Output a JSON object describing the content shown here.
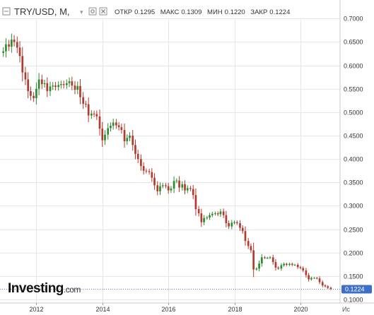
{
  "header": {
    "symbol": "TRY/USD",
    "interval": "M",
    "ohlc": [
      {
        "label": "ОТКР",
        "value": "0.1295"
      },
      {
        "label": "МАКС",
        "value": "0.1309"
      },
      {
        "label": "МИН",
        "value": "0.1220"
      },
      {
        "label": "ЗАКР",
        "value": "0.1224"
      }
    ]
  },
  "logo": {
    "brand": "Investing",
    "suffix": ".com"
  },
  "axis_corner_label": "Ис",
  "colors": {
    "up": "#2e8b2e",
    "down": "#b23a2e",
    "grid": "#e6e6e6",
    "price_line": "#5a7fc0",
    "price_tag": "#3d6fc7"
  },
  "chart_data": {
    "type": "candlestick",
    "y_ticks": [
      "0.1000",
      "0.1500",
      "0.2000",
      "0.2500",
      "0.3000",
      "0.3500",
      "0.4000",
      "0.4500",
      "0.5000",
      "0.5500",
      "0.6000",
      "0.6500",
      "0.7000"
    ],
    "ylim": [
      0.1,
      0.705
    ],
    "x_ticks": [
      "2012",
      "2014",
      "2016",
      "2018",
      "2020"
    ],
    "xlim": [
      2010.9,
      2021.2
    ],
    "last_price": 0.1224,
    "last_price_label": "0.1224",
    "points": [
      [
        2011.0,
        0.63
      ],
      [
        2011.08,
        0.645
      ],
      [
        2011.17,
        0.64
      ],
      [
        2011.25,
        0.655
      ],
      [
        2011.33,
        0.65
      ],
      [
        2011.42,
        0.638
      ],
      [
        2011.5,
        0.62
      ],
      [
        2011.58,
        0.585
      ],
      [
        2011.67,
        0.57
      ],
      [
        2011.75,
        0.545
      ],
      [
        2011.83,
        0.535
      ],
      [
        2011.92,
        0.53
      ],
      [
        2012.0,
        0.55
      ],
      [
        2012.08,
        0.57
      ],
      [
        2012.17,
        0.56
      ],
      [
        2012.25,
        0.562
      ],
      [
        2012.33,
        0.545
      ],
      [
        2012.42,
        0.555
      ],
      [
        2012.5,
        0.557
      ],
      [
        2012.58,
        0.554
      ],
      [
        2012.67,
        0.558
      ],
      [
        2012.75,
        0.56
      ],
      [
        2012.83,
        0.558
      ],
      [
        2012.92,
        0.562
      ],
      [
        2013.0,
        0.566
      ],
      [
        2013.08,
        0.557
      ],
      [
        2013.17,
        0.548
      ],
      [
        2013.25,
        0.556
      ],
      [
        2013.33,
        0.532
      ],
      [
        2013.42,
        0.518
      ],
      [
        2013.5,
        0.517
      ],
      [
        2013.58,
        0.493
      ],
      [
        2013.67,
        0.497
      ],
      [
        2013.75,
        0.496
      ],
      [
        2013.83,
        0.491
      ],
      [
        2013.92,
        0.465
      ],
      [
        2014.0,
        0.44
      ],
      [
        2014.08,
        0.452
      ],
      [
        2014.17,
        0.466
      ],
      [
        2014.25,
        0.471
      ],
      [
        2014.33,
        0.478
      ],
      [
        2014.42,
        0.472
      ],
      [
        2014.5,
        0.468
      ],
      [
        2014.58,
        0.462
      ],
      [
        2014.67,
        0.438
      ],
      [
        2014.75,
        0.445
      ],
      [
        2014.83,
        0.45
      ],
      [
        2014.92,
        0.43
      ],
      [
        2015.0,
        0.411
      ],
      [
        2015.08,
        0.4
      ],
      [
        2015.17,
        0.385
      ],
      [
        2015.25,
        0.375
      ],
      [
        2015.33,
        0.374
      ],
      [
        2015.42,
        0.372
      ],
      [
        2015.5,
        0.36
      ],
      [
        2015.58,
        0.344
      ],
      [
        2015.67,
        0.331
      ],
      [
        2015.75,
        0.342
      ],
      [
        2015.83,
        0.344
      ],
      [
        2015.92,
        0.342
      ],
      [
        2016.0,
        0.333
      ],
      [
        2016.08,
        0.337
      ],
      [
        2016.17,
        0.353
      ],
      [
        2016.25,
        0.354
      ],
      [
        2016.33,
        0.339
      ],
      [
        2016.42,
        0.346
      ],
      [
        2016.5,
        0.333
      ],
      [
        2016.58,
        0.338
      ],
      [
        2016.67,
        0.336
      ],
      [
        2016.75,
        0.323
      ],
      [
        2016.83,
        0.293
      ],
      [
        2016.92,
        0.284
      ],
      [
        2017.0,
        0.265
      ],
      [
        2017.08,
        0.274
      ],
      [
        2017.17,
        0.275
      ],
      [
        2017.25,
        0.28
      ],
      [
        2017.33,
        0.283
      ],
      [
        2017.42,
        0.284
      ],
      [
        2017.5,
        0.282
      ],
      [
        2017.58,
        0.288
      ],
      [
        2017.67,
        0.28
      ],
      [
        2017.75,
        0.263
      ],
      [
        2017.83,
        0.256
      ],
      [
        2017.92,
        0.264
      ],
      [
        2018.0,
        0.265
      ],
      [
        2018.08,
        0.263
      ],
      [
        2018.17,
        0.253
      ],
      [
        2018.25,
        0.246
      ],
      [
        2018.33,
        0.225
      ],
      [
        2018.42,
        0.214
      ],
      [
        2018.5,
        0.205
      ],
      [
        2018.58,
        0.164
      ],
      [
        2018.67,
        0.166
      ],
      [
        2018.75,
        0.177
      ],
      [
        2018.83,
        0.19
      ],
      [
        2018.92,
        0.189
      ],
      [
        2019.0,
        0.189
      ],
      [
        2019.08,
        0.19
      ],
      [
        2019.17,
        0.18
      ],
      [
        2019.25,
        0.168
      ],
      [
        2019.33,
        0.166
      ],
      [
        2019.42,
        0.173
      ],
      [
        2019.5,
        0.176
      ],
      [
        2019.58,
        0.174
      ],
      [
        2019.67,
        0.176
      ],
      [
        2019.75,
        0.174
      ],
      [
        2019.83,
        0.174
      ],
      [
        2019.92,
        0.169
      ],
      [
        2020.0,
        0.167
      ],
      [
        2020.08,
        0.162
      ],
      [
        2020.17,
        0.152
      ],
      [
        2020.25,
        0.143
      ],
      [
        2020.33,
        0.146
      ],
      [
        2020.42,
        0.146
      ],
      [
        2020.5,
        0.145
      ],
      [
        2020.58,
        0.137
      ],
      [
        2020.67,
        0.13
      ],
      [
        2020.75,
        0.128
      ],
      [
        2020.83,
        0.125
      ],
      [
        2020.92,
        0.1224
      ]
    ]
  }
}
